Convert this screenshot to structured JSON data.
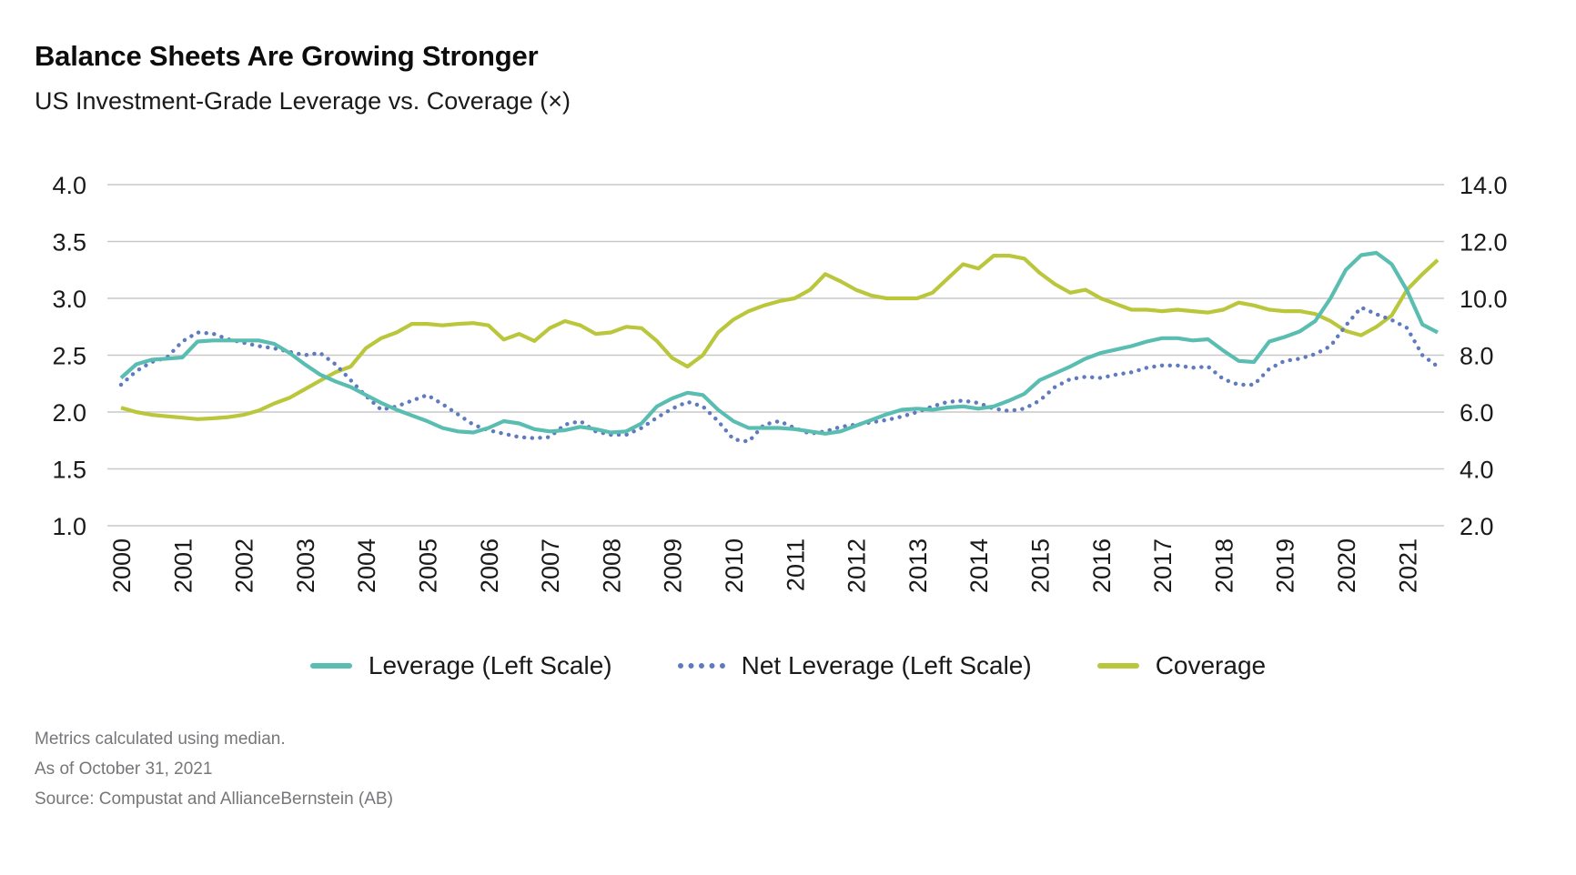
{
  "header": {
    "title": "Balance Sheets Are Growing Stronger",
    "subtitle": "US Investment-Grade Leverage vs. Coverage (×)"
  },
  "colors": {
    "leverage": "#5abdb1",
    "net_leverage": "#5f7bbe",
    "coverage": "#bac73c",
    "gridline": "#c9c9c9",
    "axis_text": "#1a1a1a",
    "footnote_text": "#76777a"
  },
  "chart_data": {
    "type": "line",
    "title": "Balance Sheets Are Growing Stronger",
    "subtitle": "US Investment-Grade Leverage vs. Coverage (×)",
    "x_unit": "quarterly, 2000 Q1 through 2021 Q3",
    "x_tick_labels": [
      "2000",
      "2001",
      "2002",
      "2003",
      "2004",
      "2005",
      "2006",
      "2007",
      "2008",
      "2009",
      "2010",
      "2011",
      "2012",
      "2013",
      "2014",
      "2015",
      "2016",
      "2017",
      "2018",
      "2019",
      "2020",
      "2021"
    ],
    "grid": true,
    "legend_position": "bottom",
    "left_axis": {
      "min": 1.0,
      "max": 4.0,
      "ticks": [
        "4.0",
        "3.5",
        "3.0",
        "2.5",
        "2.0",
        "1.5",
        "1.0"
      ]
    },
    "right_axis": {
      "min": 2.0,
      "max": 14.0,
      "ticks": [
        "14.0",
        "12.0",
        "10.0",
        "8.0",
        "6.0",
        "4.0",
        "2.0"
      ]
    },
    "series": [
      {
        "name": "Leverage (Left Scale)",
        "axis": "left",
        "style": "solid",
        "color": "#5abdb1",
        "values": [
          2.3,
          2.42,
          2.46,
          2.47,
          2.48,
          2.62,
          2.63,
          2.63,
          2.63,
          2.63,
          2.6,
          2.52,
          2.42,
          2.33,
          2.27,
          2.22,
          2.15,
          2.08,
          2.02,
          1.97,
          1.92,
          1.86,
          1.83,
          1.82,
          1.86,
          1.92,
          1.9,
          1.85,
          1.83,
          1.84,
          1.87,
          1.85,
          1.82,
          1.83,
          1.9,
          2.05,
          2.12,
          2.17,
          2.15,
          2.02,
          1.92,
          1.86,
          1.86,
          1.86,
          1.85,
          1.83,
          1.81,
          1.83,
          1.88,
          1.93,
          1.98,
          2.02,
          2.03,
          2.02,
          2.04,
          2.05,
          2.03,
          2.05,
          2.1,
          2.16,
          2.28,
          2.34,
          2.4,
          2.47,
          2.52,
          2.55,
          2.58,
          2.62,
          2.65,
          2.65,
          2.63,
          2.64,
          2.54,
          2.45,
          2.44,
          2.62,
          2.66,
          2.71,
          2.8,
          3.0,
          3.25,
          3.38,
          3.4,
          3.3,
          3.07,
          2.77,
          2.7
        ]
      },
      {
        "name": "Net Leverage (Left Scale)",
        "axis": "left",
        "style": "dotted",
        "color": "#5f7bbe",
        "values": [
          2.24,
          2.36,
          2.44,
          2.48,
          2.62,
          2.7,
          2.69,
          2.64,
          2.61,
          2.58,
          2.56,
          2.53,
          2.5,
          2.52,
          2.42,
          2.28,
          2.14,
          2.02,
          2.05,
          2.1,
          2.15,
          2.07,
          1.98,
          1.89,
          1.84,
          1.81,
          1.78,
          1.77,
          1.78,
          1.89,
          1.92,
          1.83,
          1.8,
          1.8,
          1.86,
          1.95,
          2.03,
          2.09,
          2.05,
          1.92,
          1.76,
          1.74,
          1.89,
          1.92,
          1.86,
          1.81,
          1.83,
          1.87,
          1.89,
          1.91,
          1.93,
          1.96,
          2.0,
          2.05,
          2.09,
          2.1,
          2.08,
          2.03,
          2.01,
          2.03,
          2.1,
          2.22,
          2.29,
          2.31,
          2.3,
          2.33,
          2.35,
          2.39,
          2.41,
          2.41,
          2.39,
          2.4,
          2.29,
          2.24,
          2.24,
          2.38,
          2.45,
          2.47,
          2.51,
          2.58,
          2.76,
          2.92,
          2.86,
          2.81,
          2.74,
          2.5,
          2.4
        ]
      },
      {
        "name": "Coverage",
        "axis": "right",
        "style": "solid",
        "color": "#bac73c",
        "values": [
          6.15,
          6.0,
          5.9,
          5.85,
          5.8,
          5.75,
          5.78,
          5.82,
          5.9,
          6.05,
          6.3,
          6.5,
          6.8,
          7.1,
          7.4,
          7.6,
          8.25,
          8.6,
          8.8,
          9.1,
          9.1,
          9.05,
          9.1,
          9.13,
          9.05,
          8.55,
          8.75,
          8.5,
          8.95,
          9.2,
          9.05,
          8.75,
          8.8,
          9.0,
          8.95,
          8.5,
          7.9,
          7.6,
          8.0,
          8.8,
          9.25,
          9.55,
          9.75,
          9.9,
          10.0,
          10.3,
          10.85,
          10.6,
          10.3,
          10.1,
          10.0,
          10.0,
          10.0,
          10.2,
          10.7,
          11.2,
          11.05,
          11.5,
          11.5,
          11.4,
          10.9,
          10.5,
          10.2,
          10.3,
          10.0,
          9.8,
          9.6,
          9.6,
          9.55,
          9.6,
          9.55,
          9.5,
          9.6,
          9.85,
          9.75,
          9.6,
          9.55,
          9.55,
          9.45,
          9.2,
          8.85,
          8.7,
          9.0,
          9.4,
          10.3,
          10.85,
          11.35
        ]
      }
    ]
  },
  "footnotes": {
    "line1": "Metrics calculated using median.",
    "line2": "As of October 31, 2021",
    "line3": "Source: Compustat and AllianceBernstein (AB)"
  }
}
